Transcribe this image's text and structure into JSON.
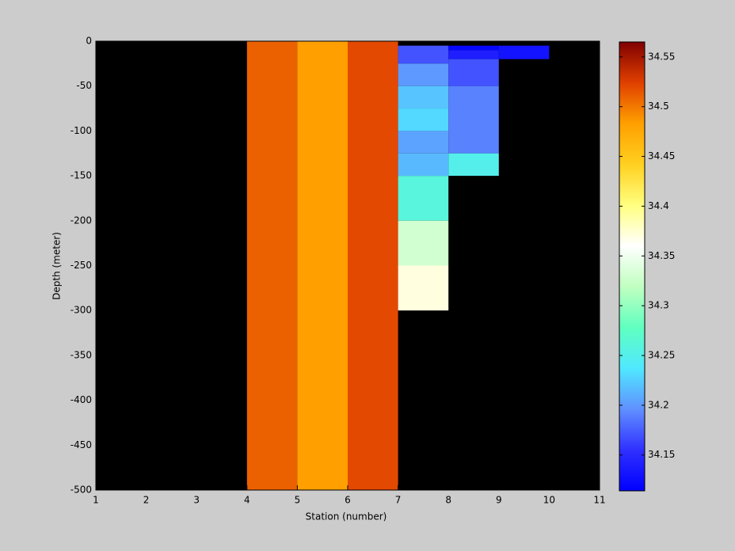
{
  "chart_data": {
    "type": "heatmap",
    "xlabel": "Station (number)",
    "ylabel": "Depth (meter)",
    "xlim": [
      1,
      11
    ],
    "xticks": [
      1,
      2,
      3,
      4,
      5,
      6,
      7,
      8,
      9,
      10,
      11
    ],
    "ylim": [
      -500,
      0
    ],
    "yticks": [
      0,
      -50,
      -100,
      -150,
      -200,
      -250,
      -300,
      -350,
      -400,
      -450,
      -500
    ],
    "clim": [
      34.114,
      34.565
    ],
    "cticks": [
      34.15,
      34.2,
      34.25,
      34.3,
      34.35,
      34.4,
      34.45,
      34.5,
      34.55
    ],
    "colormap": [
      "#0000ff",
      "#3030ff",
      "#6090ff",
      "#50e8ff",
      "#60ffc0",
      "#c0ffc0",
      "#ffffff",
      "#ffff80",
      "#ffd020",
      "#ffa000",
      "#e04000",
      "#800000"
    ],
    "background": "#000000",
    "cells": [
      {
        "x": [
          4,
          5
        ],
        "y": [
          0,
          -500
        ],
        "value": 34.51
      },
      {
        "x": [
          5,
          6
        ],
        "y": [
          0,
          -500
        ],
        "value": 34.483
      },
      {
        "x": [
          6,
          7
        ],
        "y": [
          0,
          -500
        ],
        "value": 34.52
      },
      {
        "x": [
          7,
          8
        ],
        "y": [
          -5,
          -25
        ],
        "value": 34.17
      },
      {
        "x": [
          7,
          8
        ],
        "y": [
          -25,
          -50
        ],
        "value": 34.2
      },
      {
        "x": [
          7,
          8
        ],
        "y": [
          -50,
          -75
        ],
        "value": 34.22
      },
      {
        "x": [
          7,
          8
        ],
        "y": [
          -75,
          -100
        ],
        "value": 34.23
      },
      {
        "x": [
          7,
          8
        ],
        "y": [
          -100,
          -125
        ],
        "value": 34.205
      },
      {
        "x": [
          7,
          8
        ],
        "y": [
          -125,
          -150
        ],
        "value": 34.215
      },
      {
        "x": [
          7,
          8
        ],
        "y": [
          -150,
          -200
        ],
        "value": 34.26
      },
      {
        "x": [
          7,
          8
        ],
        "y": [
          -200,
          -250
        ],
        "value": 34.33
      },
      {
        "x": [
          7,
          8
        ],
        "y": [
          -250,
          -300
        ],
        "value": 34.37
      },
      {
        "x": [
          8,
          9
        ],
        "y": [
          -5,
          -10
        ],
        "value": 34.12
      },
      {
        "x": [
          8,
          9
        ],
        "y": [
          -10,
          -20
        ],
        "value": 34.14
      },
      {
        "x": [
          8,
          9
        ],
        "y": [
          -20,
          -50
        ],
        "value": 34.17
      },
      {
        "x": [
          8,
          9
        ],
        "y": [
          -50,
          -125
        ],
        "value": 34.19
      },
      {
        "x": [
          8,
          9
        ],
        "y": [
          -125,
          -150
        ],
        "value": 34.25
      },
      {
        "x": [
          9,
          10
        ],
        "y": [
          -5,
          -20
        ],
        "value": 34.13
      }
    ]
  }
}
